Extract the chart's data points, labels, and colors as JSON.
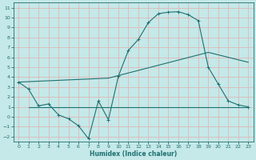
{
  "xlabel": "Humidex (Indice chaleur)",
  "xlim": [
    -0.5,
    23.5
  ],
  "ylim": [
    -2.5,
    11.5
  ],
  "xticks": [
    0,
    1,
    2,
    3,
    4,
    5,
    6,
    7,
    8,
    9,
    10,
    11,
    12,
    13,
    14,
    15,
    16,
    17,
    18,
    19,
    20,
    21,
    22,
    23
  ],
  "yticks": [
    -2,
    -1,
    0,
    1,
    2,
    3,
    4,
    5,
    6,
    7,
    8,
    9,
    10,
    11
  ],
  "background_color": "#c5e8e8",
  "grid_color": "#ddb8b8",
  "line_color": "#1e7070",
  "curve1_x": [
    0,
    1,
    2,
    3,
    4,
    5,
    6,
    7,
    8,
    9,
    10,
    11,
    12,
    13,
    14,
    15,
    16,
    17,
    18,
    19,
    20,
    21,
    22,
    23
  ],
  "curve1_y": [
    3.5,
    2.8,
    1.1,
    1.3,
    0.2,
    -0.2,
    -0.9,
    -2.2,
    1.6,
    -0.3,
    4.1,
    6.7,
    7.8,
    9.5,
    10.4,
    10.55,
    10.6,
    10.3,
    9.7,
    5.0,
    3.3,
    1.6,
    1.2,
    1.0
  ],
  "curve2_x": [
    0,
    9,
    19,
    23
  ],
  "curve2_y": [
    3.5,
    3.9,
    6.5,
    5.5
  ],
  "curve3_x": [
    1,
    9,
    22,
    23
  ],
  "curve3_y": [
    1.0,
    1.0,
    1.0,
    1.0
  ],
  "figsize": [
    3.2,
    2.0
  ],
  "dpi": 100
}
